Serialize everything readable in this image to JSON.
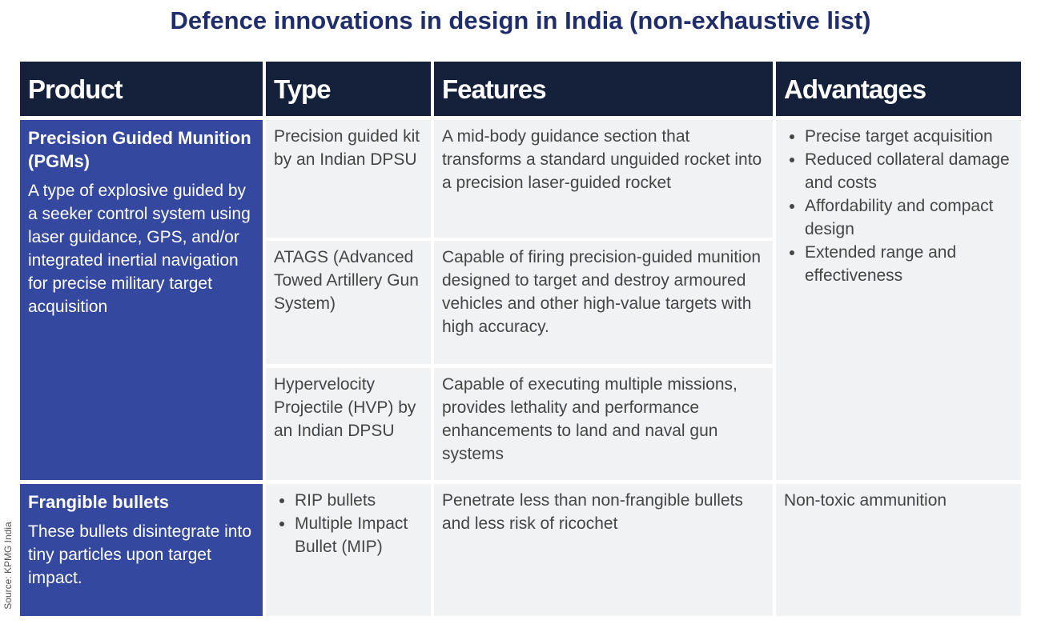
{
  "title": "Defence innovations in design in India (non-exhaustive list)",
  "source": "Source: KPMG India",
  "table": {
    "headers": [
      "Product",
      "Type",
      "Features",
      "Advantages"
    ],
    "rows": [
      {
        "product": "Precision Guided Munition (PGMs)",
        "description": "A type of explosive guided by a seeker control system using laser guidance, GPS, and/or integrated inertial navigation for precise military target acquisition",
        "items": [
          {
            "type": "Precision guided kit by an Indian DPSU",
            "features": "A mid-body guidance section that transforms a standard unguided rocket into a precision laser-guided rocket"
          },
          {
            "type": "ATAGS (Advanced Towed Artillery Gun System)",
            "features": "Capable of firing precision-guided munition designed to target and destroy armoured vehicles and other high-value targets with high accuracy."
          },
          {
            "type": "Hypervelocity Projectile (HVP) by an Indian DPSU",
            "features": "Capable of executing multiple missions, provides lethality and performance enhancements to land and naval gun systems"
          }
        ],
        "advantages": [
          "Precise target acquisition",
          "Reduced collateral damage and costs",
          "Affordability and compact design",
          "Extended range and effectiveness"
        ]
      },
      {
        "product": "Frangible bullets",
        "description": "These bullets disintegrate into tiny particles upon target impact.",
        "types": [
          "RIP bullets",
          "Multiple Impact Bullet (MIP)"
        ],
        "features": "Penetrate less than non-frangible bullets and less risk of ricochet",
        "advantages": "Non-toxic ammunition"
      }
    ]
  }
}
